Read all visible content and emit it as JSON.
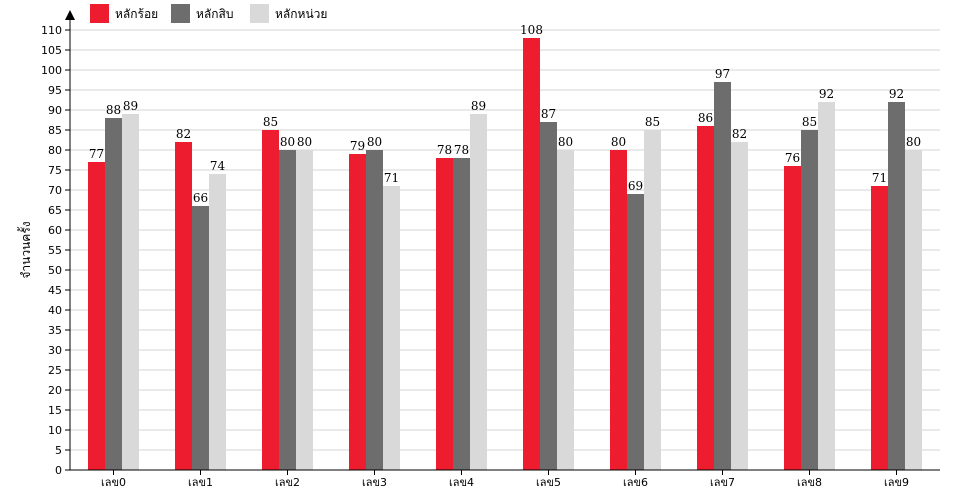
{
  "chart_data": {
    "type": "bar",
    "ylabel": "จำนวนครั้ง",
    "xlabel": "",
    "ylim": [
      0,
      110
    ],
    "ytick_step": 5,
    "grid": true,
    "legend_position": "top-left",
    "categories": [
      "เลข0",
      "เลข1",
      "เลข2",
      "เลข3",
      "เลข4",
      "เลข5",
      "เลข6",
      "เลข7",
      "เลข8",
      "เลข9"
    ],
    "series": [
      {
        "name": "หลักร้อย",
        "color": "#ed1c2e",
        "values": [
          77,
          82,
          85,
          79,
          78,
          108,
          80,
          86,
          76,
          71
        ]
      },
      {
        "name": "หลักสิบ",
        "color": "#6d6d6d",
        "values": [
          88,
          66,
          80,
          80,
          78,
          87,
          69,
          97,
          85,
          92
        ]
      },
      {
        "name": "หลักหน่วย",
        "color": "#d9d9d9",
        "values": [
          89,
          74,
          80,
          71,
          89,
          80,
          85,
          82,
          92,
          80
        ]
      }
    ]
  }
}
